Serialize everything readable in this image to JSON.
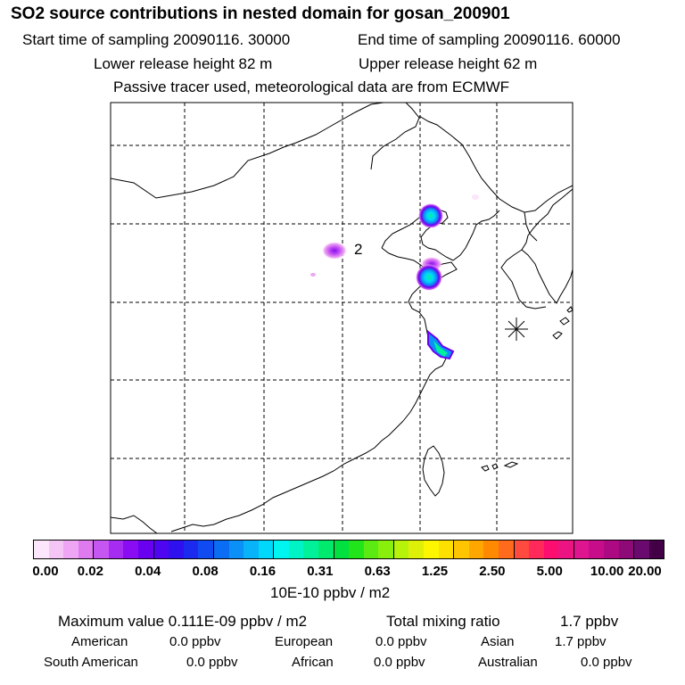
{
  "header": {
    "title": "SO2 source contributions in nested domain for gosan_200901",
    "start_label": "Start time of sampling 20090116. 30000",
    "end_label": "End time of sampling 20090116. 60000",
    "lower_label": "Lower release height   82 m",
    "upper_label": "Upper release height   62 m",
    "note": "Passive tracer used, meteorological data are from ECMWF"
  },
  "map": {
    "receptor_marker": "receptor-star-icon",
    "point_label": "2",
    "grid_style": "dashed"
  },
  "colorbar": {
    "colors": [
      "#fbe6fb",
      "#f5c6f5",
      "#eea6f4",
      "#df7aef",
      "#c656f1",
      "#a52cf0",
      "#8a0cf2",
      "#6a00f0",
      "#4e05ef",
      "#2f10ee",
      "#1c2aef",
      "#0f4bf0",
      "#0a6df4",
      "#0b90f7",
      "#09b3fa",
      "#00d8fb",
      "#00f5f0",
      "#00f3c4",
      "#00f19a",
      "#00ea6e",
      "#00e040",
      "#22e41a",
      "#5bea12",
      "#89f00e",
      "#b7f20a",
      "#def008",
      "#fdf600",
      "#fde000",
      "#fec500",
      "#ffa600",
      "#ff8900",
      "#ff6a1c",
      "#ff4a40",
      "#ff2a5a",
      "#fb0e6f",
      "#ec1482",
      "#df1590",
      "#c80d8b",
      "#ac0983",
      "#8e0a77",
      "#6a0a6e",
      "#440047"
    ],
    "ticks": [
      "0.00",
      "0.02",
      "0.04",
      "0.08",
      "0.16",
      "0.31",
      "0.63",
      "1.25",
      "2.50",
      "5.00",
      "10.00",
      "20.00"
    ],
    "unit": "10E-10 ppbv / m2"
  },
  "footer": {
    "max_value": "Maximum value  0.111E-09 ppbv / m2",
    "total_label": "Total mixing ratio",
    "total_value": "1.7 ppbv",
    "rows": [
      [
        {
          "name": "American",
          "value": "0.0 ppbv"
        },
        {
          "name": "European",
          "value": "0.0 ppbv"
        },
        {
          "name": "Asian",
          "value": "1.7 ppbv"
        }
      ],
      [
        {
          "name": "South American",
          "value": "0.0 ppbv"
        },
        {
          "name": "African",
          "value": "0.0 ppbv"
        },
        {
          "name": "Australian",
          "value": "0.0 ppbv"
        }
      ]
    ]
  }
}
